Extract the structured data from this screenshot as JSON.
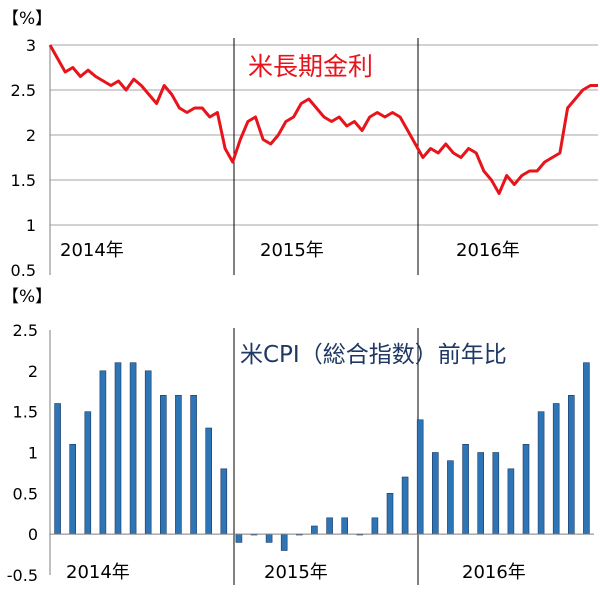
{
  "chart_data": [
    {
      "type": "line",
      "title": "米長期金利",
      "ylabel": "【%】",
      "ylim": [
        0.5,
        3
      ],
      "yticks": [
        "0.5",
        "1",
        "1.5",
        "2",
        "2.5",
        "3"
      ],
      "year_labels": [
        "2014年",
        "2015年",
        "2016年"
      ],
      "grid": true,
      "title_color": "#e8141c",
      "series": [
        {
          "color": "#e8141c",
          "x": [
            0,
            0.5,
            1,
            1.5,
            2,
            2.5,
            3,
            3.5,
            4,
            4.5,
            5,
            5.5,
            6,
            6.5,
            7,
            7.5,
            8,
            8.5,
            9,
            9.5,
            10,
            10.5,
            11,
            11.5,
            12,
            12.5,
            13,
            13.5,
            14,
            14.5,
            15,
            15.5,
            16,
            16.5,
            17,
            17.5,
            18,
            18.5,
            19,
            19.5,
            20,
            20.5,
            21,
            21.5,
            22,
            22.5,
            23,
            23.5,
            24,
            24.5,
            25,
            25.5,
            26,
            26.5,
            27,
            27.5,
            28,
            28.5,
            29,
            29.5,
            30,
            30.5,
            31,
            31.5,
            32,
            32.5,
            33,
            33.5,
            34,
            34.5,
            35,
            35.5,
            36
          ],
          "y": [
            3.0,
            2.85,
            2.7,
            2.75,
            2.65,
            2.72,
            2.65,
            2.6,
            2.55,
            2.6,
            2.5,
            2.62,
            2.55,
            2.45,
            2.35,
            2.55,
            2.45,
            2.3,
            2.25,
            2.3,
            2.3,
            2.2,
            2.25,
            1.85,
            1.7,
            1.95,
            2.15,
            2.2,
            1.95,
            1.9,
            2.0,
            2.15,
            2.2,
            2.35,
            2.4,
            2.3,
            2.2,
            2.15,
            2.2,
            2.1,
            2.15,
            2.05,
            2.2,
            2.25,
            2.2,
            2.25,
            2.2,
            2.05,
            1.9,
            1.75,
            1.85,
            1.8,
            1.9,
            1.8,
            1.75,
            1.85,
            1.8,
            1.6,
            1.5,
            1.35,
            1.55,
            1.45,
            1.55,
            1.6,
            1.6,
            1.7,
            1.75,
            1.8,
            2.3,
            2.4,
            2.5,
            2.55,
            2.55
          ]
        }
      ]
    },
    {
      "type": "bar",
      "title": "米CPI（総合指数）前年比",
      "ylabel": "【%】",
      "ylim": [
        -0.5,
        2.5
      ],
      "yticks": [
        "-0.5",
        "0",
        "0.5",
        "1",
        "1.5",
        "2",
        "2.5"
      ],
      "year_labels": [
        "2014年",
        "2015年",
        "2016年"
      ],
      "grid": false,
      "title_color": "#1f3864",
      "bar_color": "#2e75b6",
      "categories": [
        "2014-01",
        "2014-02",
        "2014-03",
        "2014-04",
        "2014-05",
        "2014-06",
        "2014-07",
        "2014-08",
        "2014-09",
        "2014-10",
        "2014-11",
        "2014-12",
        "2015-01",
        "2015-02",
        "2015-03",
        "2015-04",
        "2015-05",
        "2015-06",
        "2015-07",
        "2015-08",
        "2015-09",
        "2015-10",
        "2015-11",
        "2015-12",
        "2016-01",
        "2016-02",
        "2016-03",
        "2016-04",
        "2016-05",
        "2016-06",
        "2016-07",
        "2016-08",
        "2016-09",
        "2016-10",
        "2016-11",
        "2016-12"
      ],
      "values": [
        1.6,
        1.1,
        1.5,
        2.0,
        2.1,
        2.1,
        2.0,
        1.7,
        1.7,
        1.7,
        1.3,
        0.8,
        -0.1,
        0.0,
        -0.1,
        -0.2,
        0.0,
        0.1,
        0.2,
        0.2,
        0.0,
        0.2,
        0.5,
        0.7,
        1.4,
        1.0,
        0.9,
        1.1,
        1.0,
        1.0,
        0.8,
        1.1,
        1.5,
        1.6,
        1.7,
        2.1
      ]
    }
  ]
}
